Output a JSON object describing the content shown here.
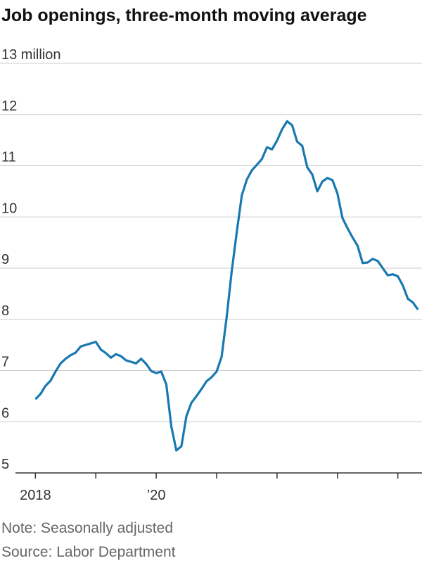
{
  "chart_data": {
    "type": "line",
    "title": "Job openings, three-month moving average",
    "note": "Note: Seasonally adjusted",
    "source": "Source: Labor Department",
    "x": [
      2018.0,
      2018.083,
      2018.167,
      2018.25,
      2018.333,
      2018.417,
      2018.5,
      2018.583,
      2018.667,
      2018.75,
      2018.833,
      2018.917,
      2019.0,
      2019.083,
      2019.167,
      2019.25,
      2019.333,
      2019.417,
      2019.5,
      2019.583,
      2019.667,
      2019.75,
      2019.833,
      2019.917,
      2020.0,
      2020.083,
      2020.167,
      2020.25,
      2020.333,
      2020.417,
      2020.5,
      2020.583,
      2020.667,
      2020.75,
      2020.833,
      2020.917,
      2021.0,
      2021.083,
      2021.167,
      2021.25,
      2021.333,
      2021.417,
      2021.5,
      2021.583,
      2021.667,
      2021.75,
      2021.833,
      2021.917,
      2022.0,
      2022.083,
      2022.167,
      2022.25,
      2022.333,
      2022.417,
      2022.5,
      2022.583,
      2022.667,
      2022.75,
      2022.833,
      2022.917,
      2023.0,
      2023.083,
      2023.167,
      2023.25,
      2023.333,
      2023.417,
      2023.5,
      2023.583,
      2023.667,
      2023.75,
      2023.833,
      2023.917,
      2024.0,
      2024.083,
      2024.167,
      2024.25,
      2024.333
    ],
    "series": [
      {
        "color": "#1878b0",
        "values": [
          6.44,
          6.54,
          6.7,
          6.8,
          6.98,
          7.14,
          7.23,
          7.3,
          7.35,
          7.47,
          7.5,
          7.53,
          7.56,
          7.41,
          7.34,
          7.25,
          7.32,
          7.28,
          7.2,
          7.17,
          7.14,
          7.23,
          7.13,
          6.99,
          6.95,
          6.98,
          6.73,
          5.91,
          5.44,
          5.52,
          6.11,
          6.37,
          6.5,
          6.64,
          6.79,
          6.87,
          6.98,
          7.27,
          8.05,
          8.94,
          9.7,
          10.42,
          10.73,
          10.91,
          11.02,
          11.13,
          11.36,
          11.32,
          11.49,
          11.71,
          11.87,
          11.79,
          11.47,
          11.39,
          10.97,
          10.83,
          10.5,
          10.69,
          10.76,
          10.72,
          10.46,
          9.98,
          9.78,
          9.6,
          9.44,
          9.1,
          9.11,
          9.18,
          9.14,
          9.0,
          8.86,
          8.88,
          8.84,
          8.66,
          8.4,
          8.33,
          8.19
        ]
      }
    ],
    "xlim": [
      2017.67,
      2024.4
    ],
    "xticks": [
      2018,
      {
        "value": 2019,
        "label": null
      },
      {
        "value": 2020,
        "label": "’20"
      },
      {
        "value": 2021,
        "label": null
      },
      {
        "value": 2022,
        "label": null
      },
      {
        "value": 2023,
        "label": null
      },
      {
        "value": 2024,
        "label": null
      }
    ],
    "ylim": [
      5,
      13
    ],
    "yticks": [
      5,
      6,
      7,
      8,
      9,
      10,
      11,
      12,
      {
        "value": 13,
        "label": "13 million"
      }
    ],
    "grid": true
  }
}
